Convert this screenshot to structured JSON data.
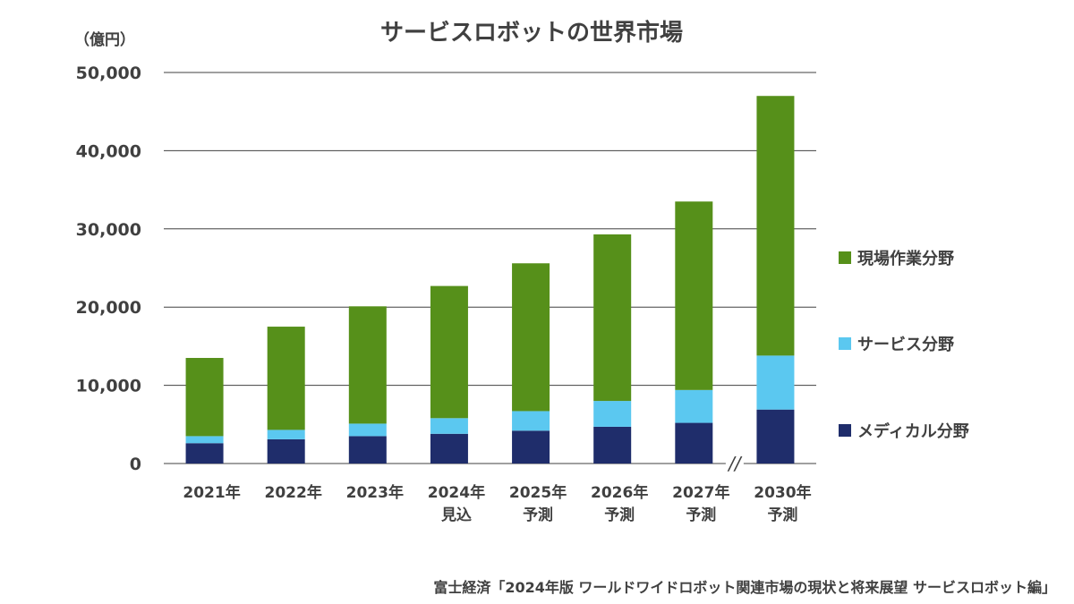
{
  "chart_data": {
    "type": "bar",
    "stacked": true,
    "title": "サービスロボットの世界市場",
    "unit_label": "（億円）",
    "categories": [
      [
        "2021年"
      ],
      [
        "2022年"
      ],
      [
        "2023年"
      ],
      [
        "2024年",
        "見込"
      ],
      [
        "2025年",
        "予測"
      ],
      [
        "2026年",
        "予測"
      ],
      [
        "2027年",
        "予測"
      ],
      [
        "2030年",
        "予測"
      ]
    ],
    "ylim": [
      0,
      50000
    ],
    "yticks": [
      0,
      10000,
      20000,
      30000,
      40000,
      50000
    ],
    "ytick_labels": [
      "0",
      "10,000",
      "20,000",
      "30,000",
      "40,000",
      "50,000"
    ],
    "grid": true,
    "axis_break_before_last": true,
    "axis_break_label": "//",
    "legend_position": "right",
    "series": [
      {
        "name": "メディカル分野",
        "color": "#1f2d6b",
        "values": [
          2600,
          3100,
          3500,
          3800,
          4200,
          4700,
          5200,
          6900
        ]
      },
      {
        "name": "サービス分野",
        "color": "#5bc8f0",
        "values": [
          900,
          1200,
          1600,
          2000,
          2500,
          3300,
          4200,
          6900
        ]
      },
      {
        "name": "現場作業分野",
        "color": "#56901a",
        "values": [
          10000,
          13200,
          15000,
          16900,
          18900,
          21300,
          24100,
          33200
        ]
      }
    ],
    "legend_order": [
      2,
      1,
      0
    ]
  },
  "source": "富士経済「2024年版 ワールドワイドロボット関連市場の現状と将来展望 サービスロボット編」"
}
